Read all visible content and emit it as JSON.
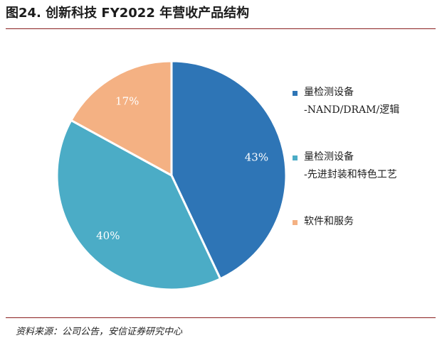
{
  "header": {
    "title": "图24. 创新科技 FY2022 年营收产品结构"
  },
  "chart_data": {
    "type": "pie",
    "slices": [
      {
        "label_lines": [
          "量检测设备",
          "-NAND/DRAM/逻辑"
        ],
        "value": 43,
        "label": "43%",
        "color": "#2e75b6"
      },
      {
        "label_lines": [
          "量检测设备",
          "-先进封装和特色工艺"
        ],
        "value": 40,
        "label": "40%",
        "color": "#4bacc6"
      },
      {
        "label_lines": [
          "软件和服务"
        ],
        "value": 17,
        "label": "17%",
        "color": "#f4b183"
      }
    ],
    "legend_position": "right"
  },
  "footer": {
    "source": "资料来源：公司公告，安信证券研究中心"
  }
}
